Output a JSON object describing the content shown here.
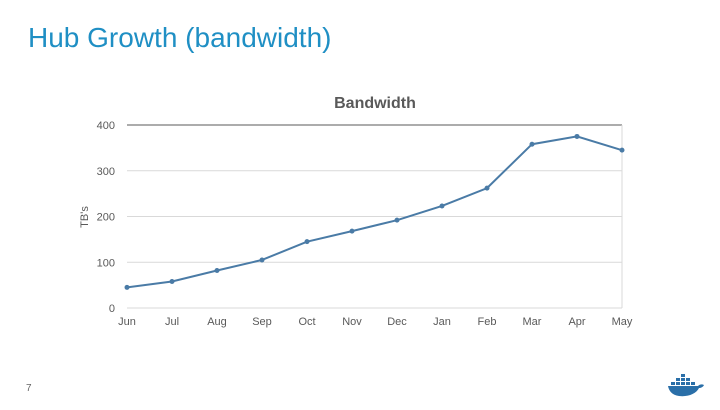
{
  "slide": {
    "title": "Hub Growth (bandwidth)",
    "page_number": "7"
  },
  "colors": {
    "title": "#1f8fc4",
    "series": "#4a7ba6",
    "grid": "#d9d9d9",
    "logo": "#2a6fa8"
  },
  "icons": {
    "logo": "docker-whale-icon"
  },
  "chart_data": {
    "type": "line",
    "title": "Bandwidth",
    "xlabel": "",
    "ylabel": "TB's",
    "categories": [
      "Jun",
      "Jul",
      "Aug",
      "Sep",
      "Oct",
      "Nov",
      "Dec",
      "Jan",
      "Feb",
      "Mar",
      "Apr",
      "May"
    ],
    "series": [
      {
        "values": [
          45,
          58,
          82,
          105,
          145,
          168,
          192,
          223,
          262,
          358,
          375,
          345
        ]
      }
    ],
    "ylim": [
      0,
      400
    ],
    "yticks": [
      "0",
      "100",
      "200",
      "300",
      "400"
    ],
    "grid": true,
    "legend": "none"
  }
}
